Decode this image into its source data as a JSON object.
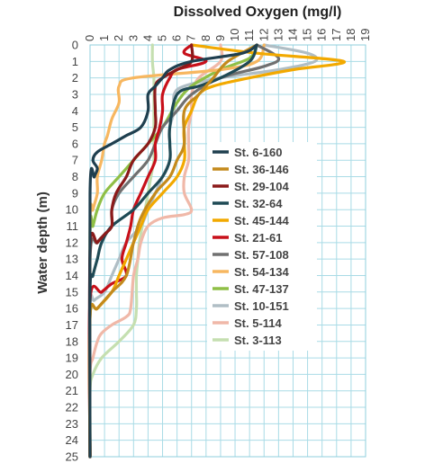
{
  "chart_data": {
    "type": "line",
    "title": "Dissolved Oxygen (mg/l)",
    "xlabel": "Dissolved Oxygen (mg/l)",
    "ylabel": "Water depth (m)",
    "xlim": [
      0,
      19
    ],
    "ylim": [
      0,
      25
    ],
    "y_inverted": true,
    "x_axis_position": "top",
    "x_ticks": [
      0,
      1,
      2,
      3,
      4,
      5,
      6,
      7,
      8,
      9,
      10,
      11,
      12,
      13,
      14,
      15,
      16,
      17,
      18,
      19
    ],
    "y_ticks": [
      0,
      1,
      2,
      3,
      4,
      5,
      6,
      7,
      8,
      9,
      10,
      11,
      12,
      13,
      14,
      15,
      16,
      17,
      18,
      19,
      20,
      21,
      22,
      23,
      24,
      25
    ],
    "grid": true,
    "legend_position": "right-center",
    "series": [
      {
        "name": "St. 6-160",
        "color": "#1f3f4f",
        "points": [
          [
            11.5,
            0
          ],
          [
            10.5,
            0.5
          ],
          [
            7,
            1
          ],
          [
            5.5,
            1.5
          ],
          [
            5,
            2
          ],
          [
            4.5,
            2.5
          ],
          [
            4,
            3
          ],
          [
            4,
            4
          ],
          [
            3.5,
            5
          ],
          [
            2.5,
            5.5
          ],
          [
            1.5,
            6
          ],
          [
            0.5,
            6.5
          ],
          [
            0.2,
            7
          ],
          [
            0.5,
            7.5
          ],
          [
            0.3,
            8
          ],
          [
            0,
            9
          ],
          [
            0,
            25
          ]
        ]
      },
      {
        "name": "St. 36-146",
        "color": "#c48a1c",
        "points": [
          [
            11.5,
            0
          ],
          [
            9.5,
            1
          ],
          [
            8.5,
            2
          ],
          [
            7.5,
            3
          ],
          [
            6.5,
            4
          ],
          [
            6.5,
            6
          ],
          [
            6,
            7
          ],
          [
            5.5,
            8
          ],
          [
            4.5,
            9
          ],
          [
            3.5,
            10.5
          ],
          [
            3,
            12
          ],
          [
            2.5,
            14
          ],
          [
            1.5,
            15
          ],
          [
            0.5,
            16
          ],
          [
            0,
            16.5
          ],
          [
            0,
            25
          ]
        ]
      },
      {
        "name": "St. 29-104",
        "color": "#8b1a1a",
        "points": [
          [
            7,
            0
          ],
          [
            7,
            1
          ],
          [
            6,
            1.5
          ],
          [
            5,
            2
          ],
          [
            4.5,
            2.5
          ],
          [
            4.5,
            4
          ],
          [
            4.5,
            5
          ],
          [
            4,
            6
          ],
          [
            3,
            7
          ],
          [
            2.5,
            8
          ],
          [
            1.8,
            9
          ],
          [
            1.5,
            10
          ],
          [
            1.5,
            11
          ],
          [
            1,
            11.5
          ],
          [
            0.5,
            12
          ],
          [
            0,
            12.5
          ],
          [
            0,
            25
          ]
        ]
      },
      {
        "name": "St. 32-64",
        "color": "#1f4a55",
        "points": [
          [
            11.5,
            0
          ],
          [
            11,
            1
          ],
          [
            9,
            2
          ],
          [
            7.5,
            2.5
          ],
          [
            6,
            3
          ],
          [
            5.5,
            5
          ],
          [
            5.5,
            6
          ],
          [
            5.5,
            7
          ],
          [
            5,
            8
          ],
          [
            4,
            9
          ],
          [
            3,
            10
          ],
          [
            1.5,
            11
          ],
          [
            0.8,
            12
          ],
          [
            0.5,
            13
          ],
          [
            0.2,
            14
          ],
          [
            0,
            15
          ],
          [
            0,
            25
          ]
        ]
      },
      {
        "name": "St. 45-144",
        "color": "#f2a900",
        "points": [
          [
            7,
            0
          ],
          [
            11.5,
            0.5
          ],
          [
            17.5,
            1
          ],
          [
            14,
            1.5
          ],
          [
            11,
            2
          ],
          [
            8.5,
            2.5
          ],
          [
            7.5,
            3
          ],
          [
            7,
            4
          ],
          [
            6.5,
            5
          ],
          [
            6.5,
            6
          ],
          [
            6.5,
            7
          ],
          [
            6,
            8
          ],
          [
            5,
            9
          ],
          [
            4,
            10
          ],
          [
            3.5,
            11
          ],
          [
            3,
            12
          ],
          [
            2.5,
            13
          ],
          [
            2,
            14
          ],
          [
            1.5,
            15
          ],
          [
            0.5,
            16
          ],
          [
            0,
            16.5
          ],
          [
            0,
            25
          ]
        ]
      },
      {
        "name": "St. 21-61",
        "color": "#c8101a",
        "points": [
          [
            7,
            0
          ],
          [
            6.5,
            0.5
          ],
          [
            8,
            1
          ],
          [
            6,
            1.5
          ],
          [
            5.5,
            2
          ],
          [
            5,
            3
          ],
          [
            5,
            4
          ],
          [
            4.8,
            5
          ],
          [
            4.5,
            6
          ],
          [
            4.5,
            7
          ],
          [
            4,
            8
          ],
          [
            3.5,
            9
          ],
          [
            3,
            10
          ],
          [
            2.8,
            11
          ],
          [
            2.5,
            12
          ],
          [
            2.2,
            13
          ],
          [
            2.5,
            14
          ],
          [
            1.5,
            14.5
          ],
          [
            0.8,
            15
          ],
          [
            0,
            15.5
          ],
          [
            0,
            25
          ]
        ]
      },
      {
        "name": "St. 57-108",
        "color": "#707070",
        "points": [
          [
            11.5,
            0
          ],
          [
            13,
            0.8
          ],
          [
            12,
            1.3
          ],
          [
            9,
            2
          ],
          [
            7,
            3
          ],
          [
            6,
            4
          ],
          [
            5,
            5
          ],
          [
            4.5,
            6
          ],
          [
            4,
            7
          ],
          [
            3,
            8
          ],
          [
            2,
            9
          ],
          [
            1.5,
            10
          ],
          [
            1.5,
            11
          ],
          [
            1,
            11.5
          ],
          [
            0.5,
            12
          ],
          [
            0,
            13
          ],
          [
            0,
            25
          ]
        ]
      },
      {
        "name": "St. 54-134",
        "color": "#f7b760",
        "points": [
          [
            12,
            0
          ],
          [
            11.5,
            1
          ],
          [
            9,
            1.5
          ],
          [
            3,
            2
          ],
          [
            2,
            2.5
          ],
          [
            2,
            3.5
          ],
          [
            1.5,
            4.5
          ],
          [
            1.2,
            5.5
          ],
          [
            1,
            6
          ],
          [
            0.8,
            7
          ],
          [
            0.5,
            8
          ],
          [
            0.5,
            9
          ],
          [
            0.2,
            10
          ],
          [
            0,
            11
          ],
          [
            0,
            25
          ]
        ]
      },
      {
        "name": "St. 47-137",
        "color": "#8fbf46",
        "points": [
          [
            11.5,
            0
          ],
          [
            11,
            0.8
          ],
          [
            9,
            1.5
          ],
          [
            7,
            2.5
          ],
          [
            6,
            3.5
          ],
          [
            5,
            5
          ],
          [
            4,
            6
          ],
          [
            3,
            7
          ],
          [
            2,
            8
          ],
          [
            1,
            9
          ],
          [
            0.5,
            10
          ],
          [
            0.2,
            11
          ],
          [
            0,
            11.5
          ],
          [
            0,
            25
          ]
        ]
      },
      {
        "name": "St. 10-151",
        "color": "#b0bec5",
        "points": [
          [
            12,
            0
          ],
          [
            15,
            0.5
          ],
          [
            15.5,
            1
          ],
          [
            13,
            1.5
          ],
          [
            9,
            2
          ],
          [
            6.5,
            2.5
          ],
          [
            5.8,
            3
          ],
          [
            5.8,
            4
          ],
          [
            5.5,
            5
          ],
          [
            5.5,
            6
          ],
          [
            5.5,
            7
          ],
          [
            5,
            8
          ],
          [
            4.5,
            9
          ],
          [
            4,
            10
          ],
          [
            3.5,
            11
          ],
          [
            2.5,
            12
          ],
          [
            2,
            13
          ],
          [
            1.5,
            14
          ],
          [
            1,
            15
          ],
          [
            0.3,
            15.5
          ],
          [
            0,
            16
          ],
          [
            0,
            25
          ]
        ]
      },
      {
        "name": "St. 5-114",
        "color": "#f0b8a8",
        "points": [
          [
            9,
            0
          ],
          [
            9,
            1
          ],
          [
            7.5,
            2
          ],
          [
            7,
            3
          ],
          [
            7,
            4
          ],
          [
            6.8,
            5
          ],
          [
            6.8,
            6
          ],
          [
            6.8,
            7
          ],
          [
            6.5,
            8
          ],
          [
            6.5,
            9
          ],
          [
            7,
            10
          ],
          [
            6.5,
            10.3
          ],
          [
            5,
            10.5
          ],
          [
            4,
            11
          ],
          [
            3.5,
            12
          ],
          [
            3.3,
            13
          ],
          [
            3,
            14
          ],
          [
            2.8,
            16
          ],
          [
            2.5,
            16.5
          ],
          [
            1.5,
            17
          ],
          [
            0.8,
            17.5
          ],
          [
            0.5,
            18
          ],
          [
            0.2,
            19
          ],
          [
            0,
            20
          ],
          [
            0,
            25
          ]
        ]
      },
      {
        "name": "St. 3-113",
        "color": "#c5dfb0",
        "points": [
          [
            4.3,
            0
          ],
          [
            4.3,
            1
          ],
          [
            4.4,
            2
          ],
          [
            4.4,
            3
          ],
          [
            4.4,
            4
          ],
          [
            4.4,
            5
          ],
          [
            4.4,
            6
          ],
          [
            4.4,
            7
          ],
          [
            4.2,
            8
          ],
          [
            4,
            9
          ],
          [
            3.8,
            10
          ],
          [
            3.6,
            11
          ],
          [
            3.4,
            12
          ],
          [
            3.3,
            13
          ],
          [
            3.2,
            14
          ],
          [
            3.2,
            15
          ],
          [
            3.2,
            16
          ],
          [
            3,
            17
          ],
          [
            2,
            18
          ],
          [
            0.8,
            19
          ],
          [
            0.2,
            20
          ],
          [
            0,
            21
          ],
          [
            0,
            25
          ]
        ]
      }
    ]
  }
}
